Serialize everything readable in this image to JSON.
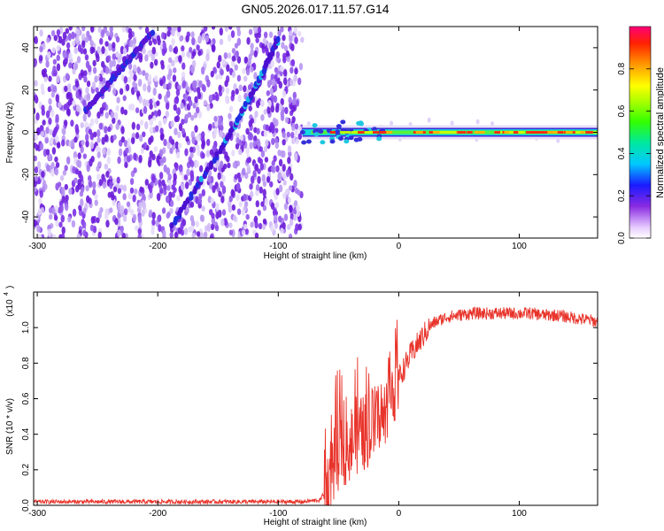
{
  "title": "GN05.2026.017.11.57.G14",
  "chart_data": [
    {
      "type": "heatmap",
      "xlabel": "Height of straight line (km)",
      "ylabel": "Frequency (Hz)",
      "xlim": [
        -303,
        165
      ],
      "ylim": [
        -50,
        50
      ],
      "xticks": [
        -300,
        -200,
        -100,
        0,
        100
      ],
      "yticks": [
        -40,
        -20,
        0,
        20,
        40
      ],
      "colorbar": {
        "label": "Normalized spectral amplitude",
        "range": [
          0,
          1
        ],
        "ticks": [
          0.0,
          0.2,
          0.4,
          0.6,
          0.8
        ]
      },
      "noise_region_x": [
        -303,
        -80
      ],
      "tracks": [
        {
          "x": [
            -188,
            -145,
            -118,
            -100
          ],
          "y": [
            -44,
            -6,
            22,
            44
          ]
        },
        {
          "x": [
            -260,
            -230,
            -205
          ],
          "y": [
            10,
            30,
            47
          ]
        }
      ],
      "carrier_band": {
        "x": [
          -80,
          165
        ],
        "y": 0
      }
    },
    {
      "type": "line",
      "xlabel": "Height of straight line (km)",
      "ylabel": "SNR (10 * v/v)",
      "yscale_label": "(x10",
      "yscale_exp": "4",
      "xlim": [
        -303,
        165
      ],
      "ylim": [
        0,
        1.2
      ],
      "xticks": [
        -300,
        -200,
        -100,
        0,
        100
      ],
      "yticks": [
        0.0,
        0.2,
        0.4,
        0.6,
        0.8,
        1.0
      ],
      "color": "#e8332a",
      "series": [
        {
          "x": [
            -303,
            -250,
            -200,
            -150,
            -100,
            -80,
            -65,
            -60,
            -55,
            -50,
            -45,
            -40,
            -35,
            -30,
            -25,
            -20,
            -15,
            -10,
            -5,
            0,
            5,
            10,
            15,
            20,
            25,
            30,
            40,
            50,
            60,
            70,
            80,
            90,
            100,
            110,
            120,
            130,
            140,
            150,
            160,
            165
          ],
          "y": [
            0.02,
            0.02,
            0.02,
            0.02,
            0.02,
            0.02,
            0.03,
            0.1,
            0.2,
            0.3,
            0.33,
            0.35,
            0.38,
            0.4,
            0.43,
            0.46,
            0.5,
            0.58,
            0.66,
            0.72,
            0.78,
            0.85,
            0.9,
            0.95,
            1.0,
            1.03,
            1.06,
            1.07,
            1.08,
            1.08,
            1.08,
            1.08,
            1.08,
            1.08,
            1.07,
            1.07,
            1.06,
            1.05,
            1.04,
            1.03
          ]
        }
      ]
    }
  ]
}
